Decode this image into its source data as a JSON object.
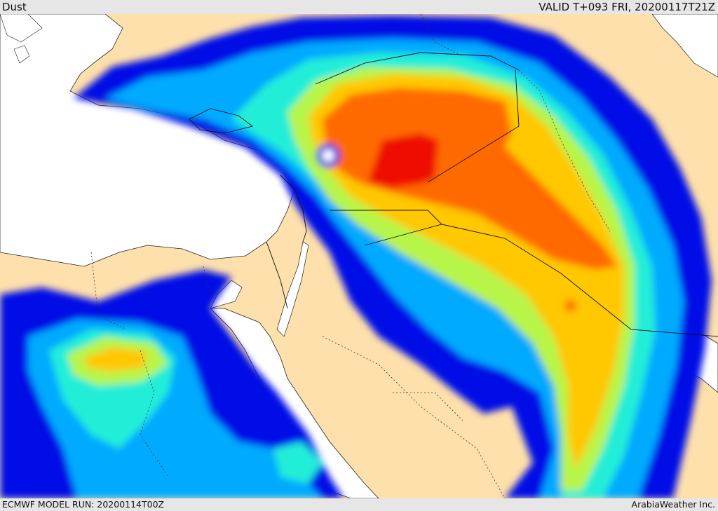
{
  "header": {
    "product": "Dust",
    "valid": "VALID T+093 FRI, 20200117T21Z"
  },
  "footer": {
    "model_run": "ECMWF MODEL RUN: 20200114T00Z",
    "credit": "ArabiaWeather Inc."
  },
  "colors": {
    "land": "#fde0ab",
    "sea": "#ffffff",
    "levels": [
      "#0010e6",
      "#00aaff",
      "#22eed8",
      "#b8f54a",
      "#ffc800",
      "#ff6a00",
      "#ee1100"
    ]
  }
}
